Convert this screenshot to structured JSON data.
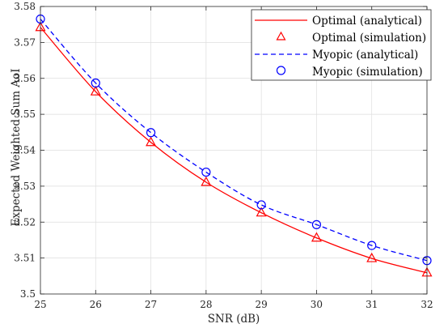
{
  "chart_data": {
    "type": "line",
    "xlabel": "SNR (dB)",
    "ylabel": "Expected Weighted Sum AoI",
    "xlim": [
      25,
      32
    ],
    "ylim": [
      3.5,
      3.58
    ],
    "xticks": [
      "25",
      "26",
      "27",
      "28",
      "29",
      "30",
      "31",
      "32"
    ],
    "yticks": [
      "3.5",
      "3.51",
      "3.52",
      "3.53",
      "3.54",
      "3.55",
      "3.56",
      "3.57",
      "3.58"
    ],
    "grid": true,
    "legend_position": "top-right",
    "x": [
      25,
      26,
      27,
      28,
      29,
      30,
      31,
      32
    ],
    "series": [
      {
        "name": "Optimal (analytical)",
        "style": "solid-line",
        "color": "#ff0000",
        "values": [
          3.5742,
          3.5563,
          3.5422,
          3.5311,
          3.5226,
          3.5156,
          3.5099,
          3.5059
        ]
      },
      {
        "name": "Optimal (simulation)",
        "style": "triangle-marker",
        "color": "#ff0000",
        "values": [
          3.5742,
          3.5563,
          3.5422,
          3.5311,
          3.5226,
          3.5156,
          3.5099,
          3.5059
        ]
      },
      {
        "name": "Myopic (analytical)",
        "style": "dashed-line",
        "color": "#0000ff",
        "values": [
          3.5765,
          3.5587,
          3.5449,
          3.5339,
          3.5248,
          3.5193,
          3.5135,
          3.5093
        ]
      },
      {
        "name": "Myopic (simulation)",
        "style": "circle-marker",
        "color": "#0000ff",
        "values": [
          3.5765,
          3.5587,
          3.5449,
          3.5339,
          3.5248,
          3.5193,
          3.5135,
          3.5093
        ]
      }
    ]
  }
}
